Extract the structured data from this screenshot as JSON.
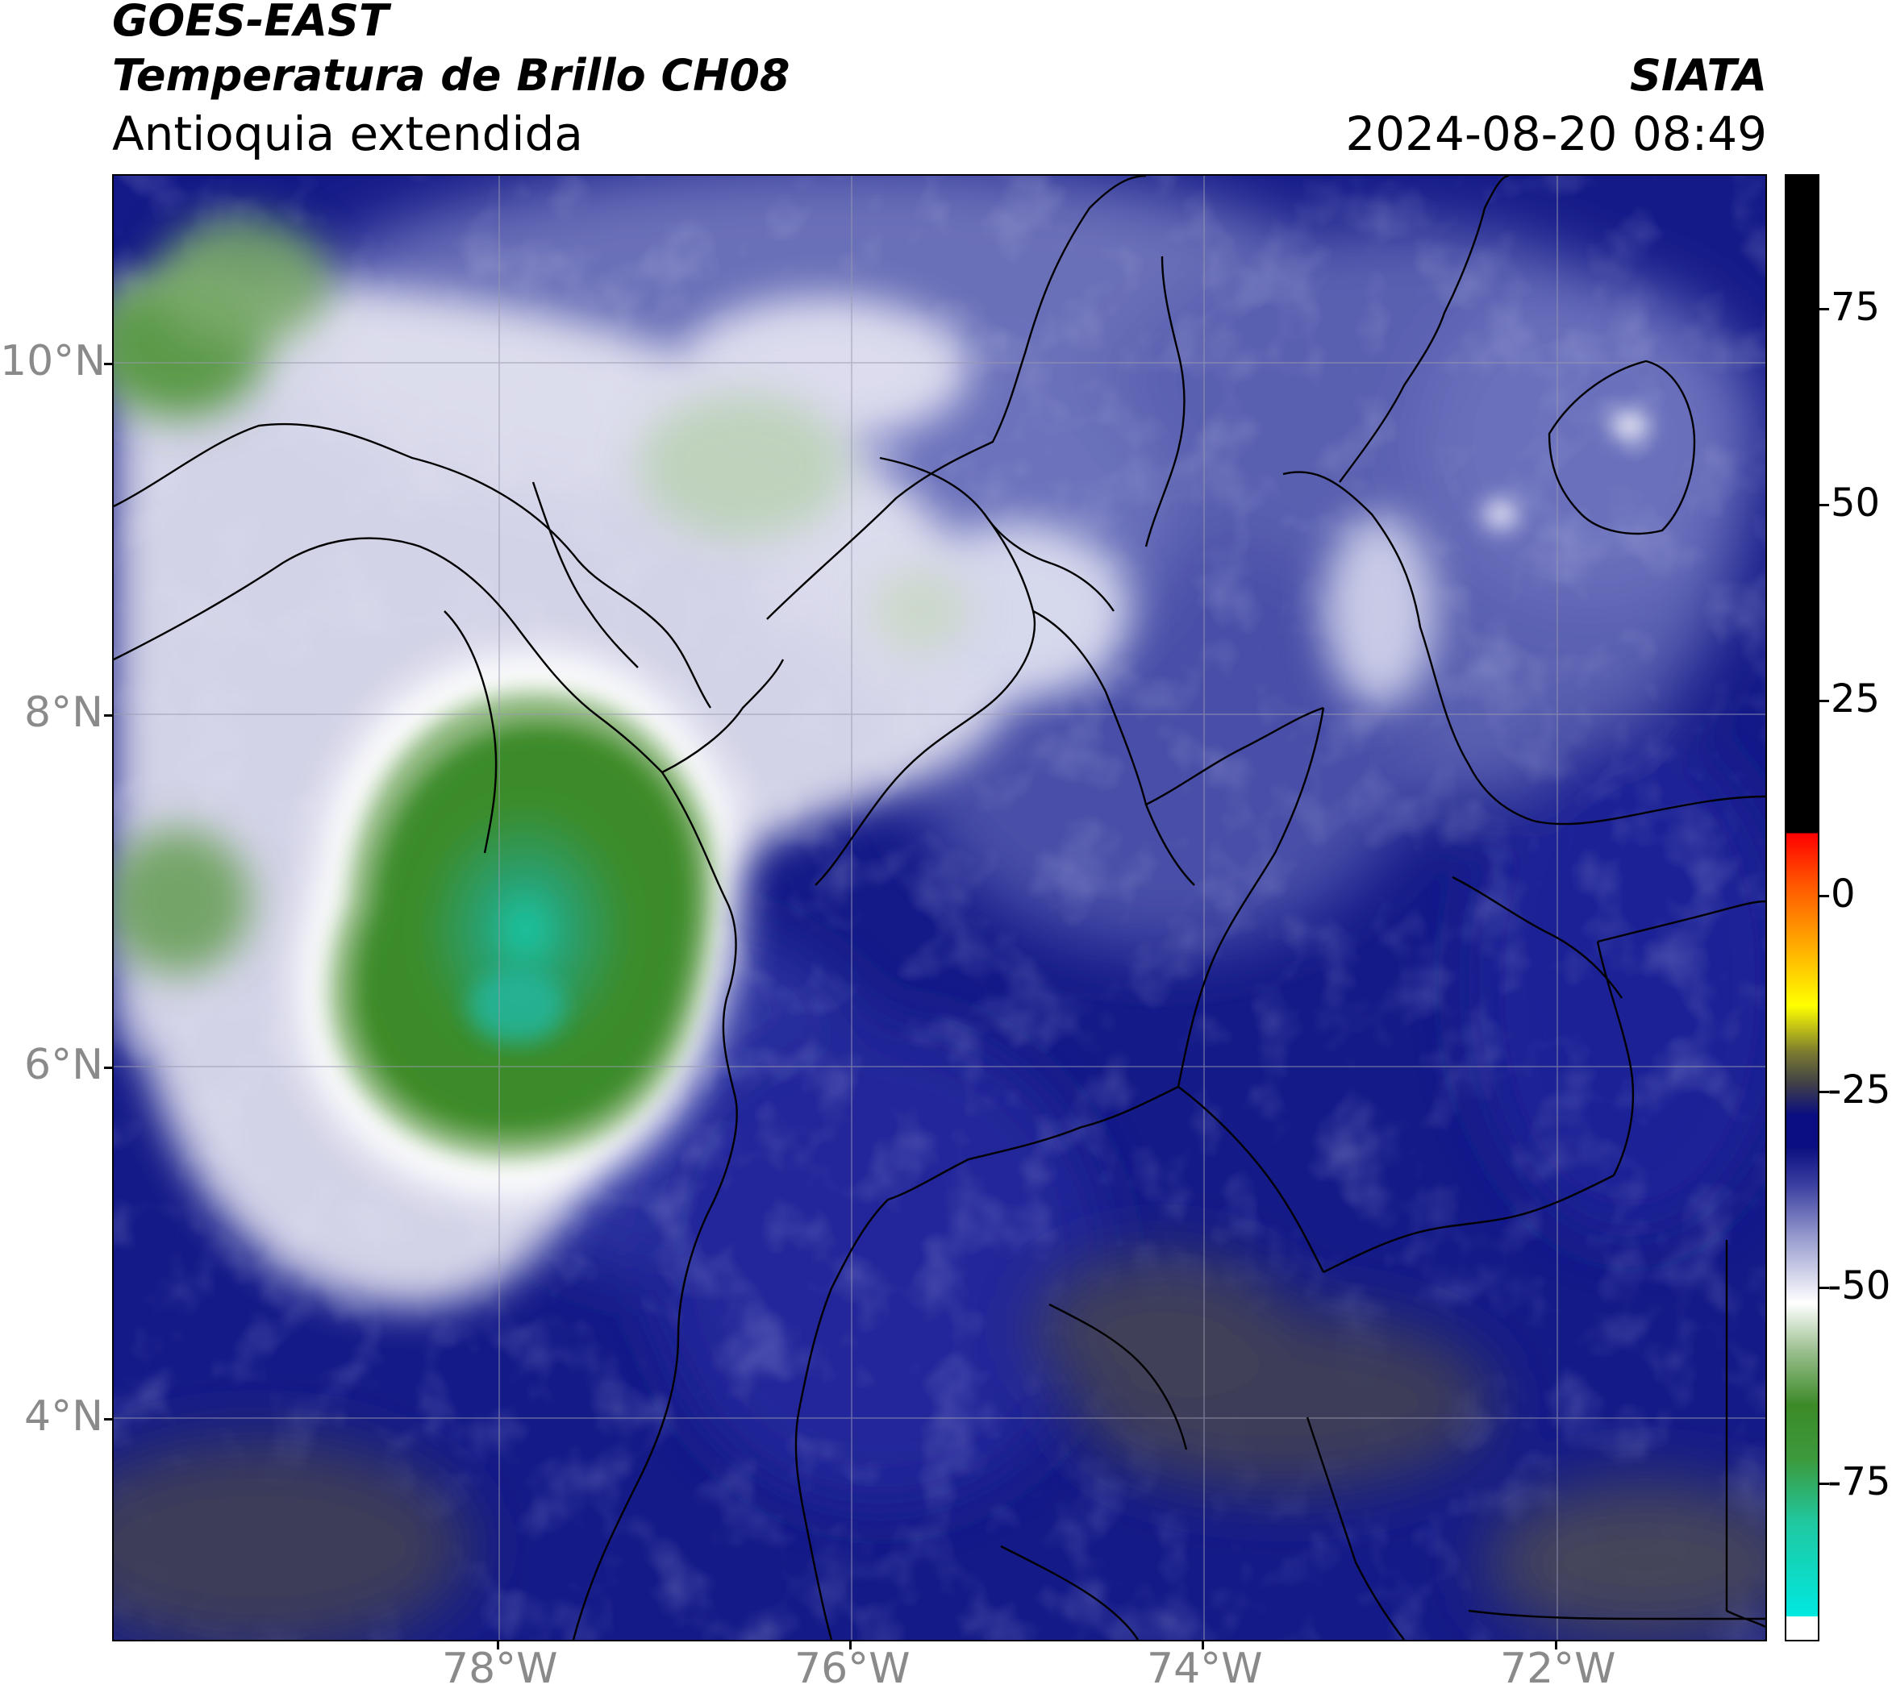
{
  "header": {
    "satellite": "GOES-EAST",
    "product": "Temperatura de Brillo CH08",
    "region": "Antioquia extendida",
    "agency": "SIATA",
    "datetime": "2024-08-20 08:49"
  },
  "map": {
    "lon_ticks": [
      "78°W",
      "76°W",
      "74°W",
      "72°W"
    ],
    "lat_ticks": [
      "10°N",
      "8°N",
      "6°N",
      "4°N"
    ],
    "gridlines": true,
    "colors": {
      "cold_cloud_green": "#3c8a28",
      "coldest_cyan": "#18c8a8",
      "mid_white": "#f4f4f8",
      "lavender": "#8c90c8",
      "navy": "#0e1482",
      "dark_gray": "#404050",
      "borders": "#000000"
    }
  },
  "colorbar": {
    "tick_labels": [
      "75",
      "50",
      "25",
      "0",
      "-25",
      "-50",
      "-75"
    ],
    "tick_values": [
      75,
      50,
      25,
      0,
      -25,
      -50,
      -75
    ],
    "range": [
      -95,
      92
    ],
    "stops": [
      {
        "v": -95,
        "c": "#ffffff"
      },
      {
        "v": -92,
        "c": "#ffffff"
      },
      {
        "v": -92,
        "c": "#00e8e0"
      },
      {
        "v": -80,
        "c": "#20c8a0"
      },
      {
        "v": -72,
        "c": "#3c9a3c"
      },
      {
        "v": -65,
        "c": "#3c8a28"
      },
      {
        "v": -58,
        "c": "#9cc090"
      },
      {
        "v": -52,
        "c": "#ffffff"
      },
      {
        "v": -44,
        "c": "#9ca0d0"
      },
      {
        "v": -37,
        "c": "#3c40a0"
      },
      {
        "v": -32,
        "c": "#0a0e80"
      },
      {
        "v": -28,
        "c": "#0a0e80"
      },
      {
        "v": -24,
        "c": "#404048"
      },
      {
        "v": -20,
        "c": "#7a7a30"
      },
      {
        "v": -14,
        "c": "#ffff00"
      },
      {
        "v": -6,
        "c": "#ffa800"
      },
      {
        "v": 2,
        "c": "#ff5000"
      },
      {
        "v": 8,
        "c": "#ff0000"
      },
      {
        "v": 8,
        "c": "#000000"
      },
      {
        "v": 92,
        "c": "#000000"
      }
    ]
  }
}
